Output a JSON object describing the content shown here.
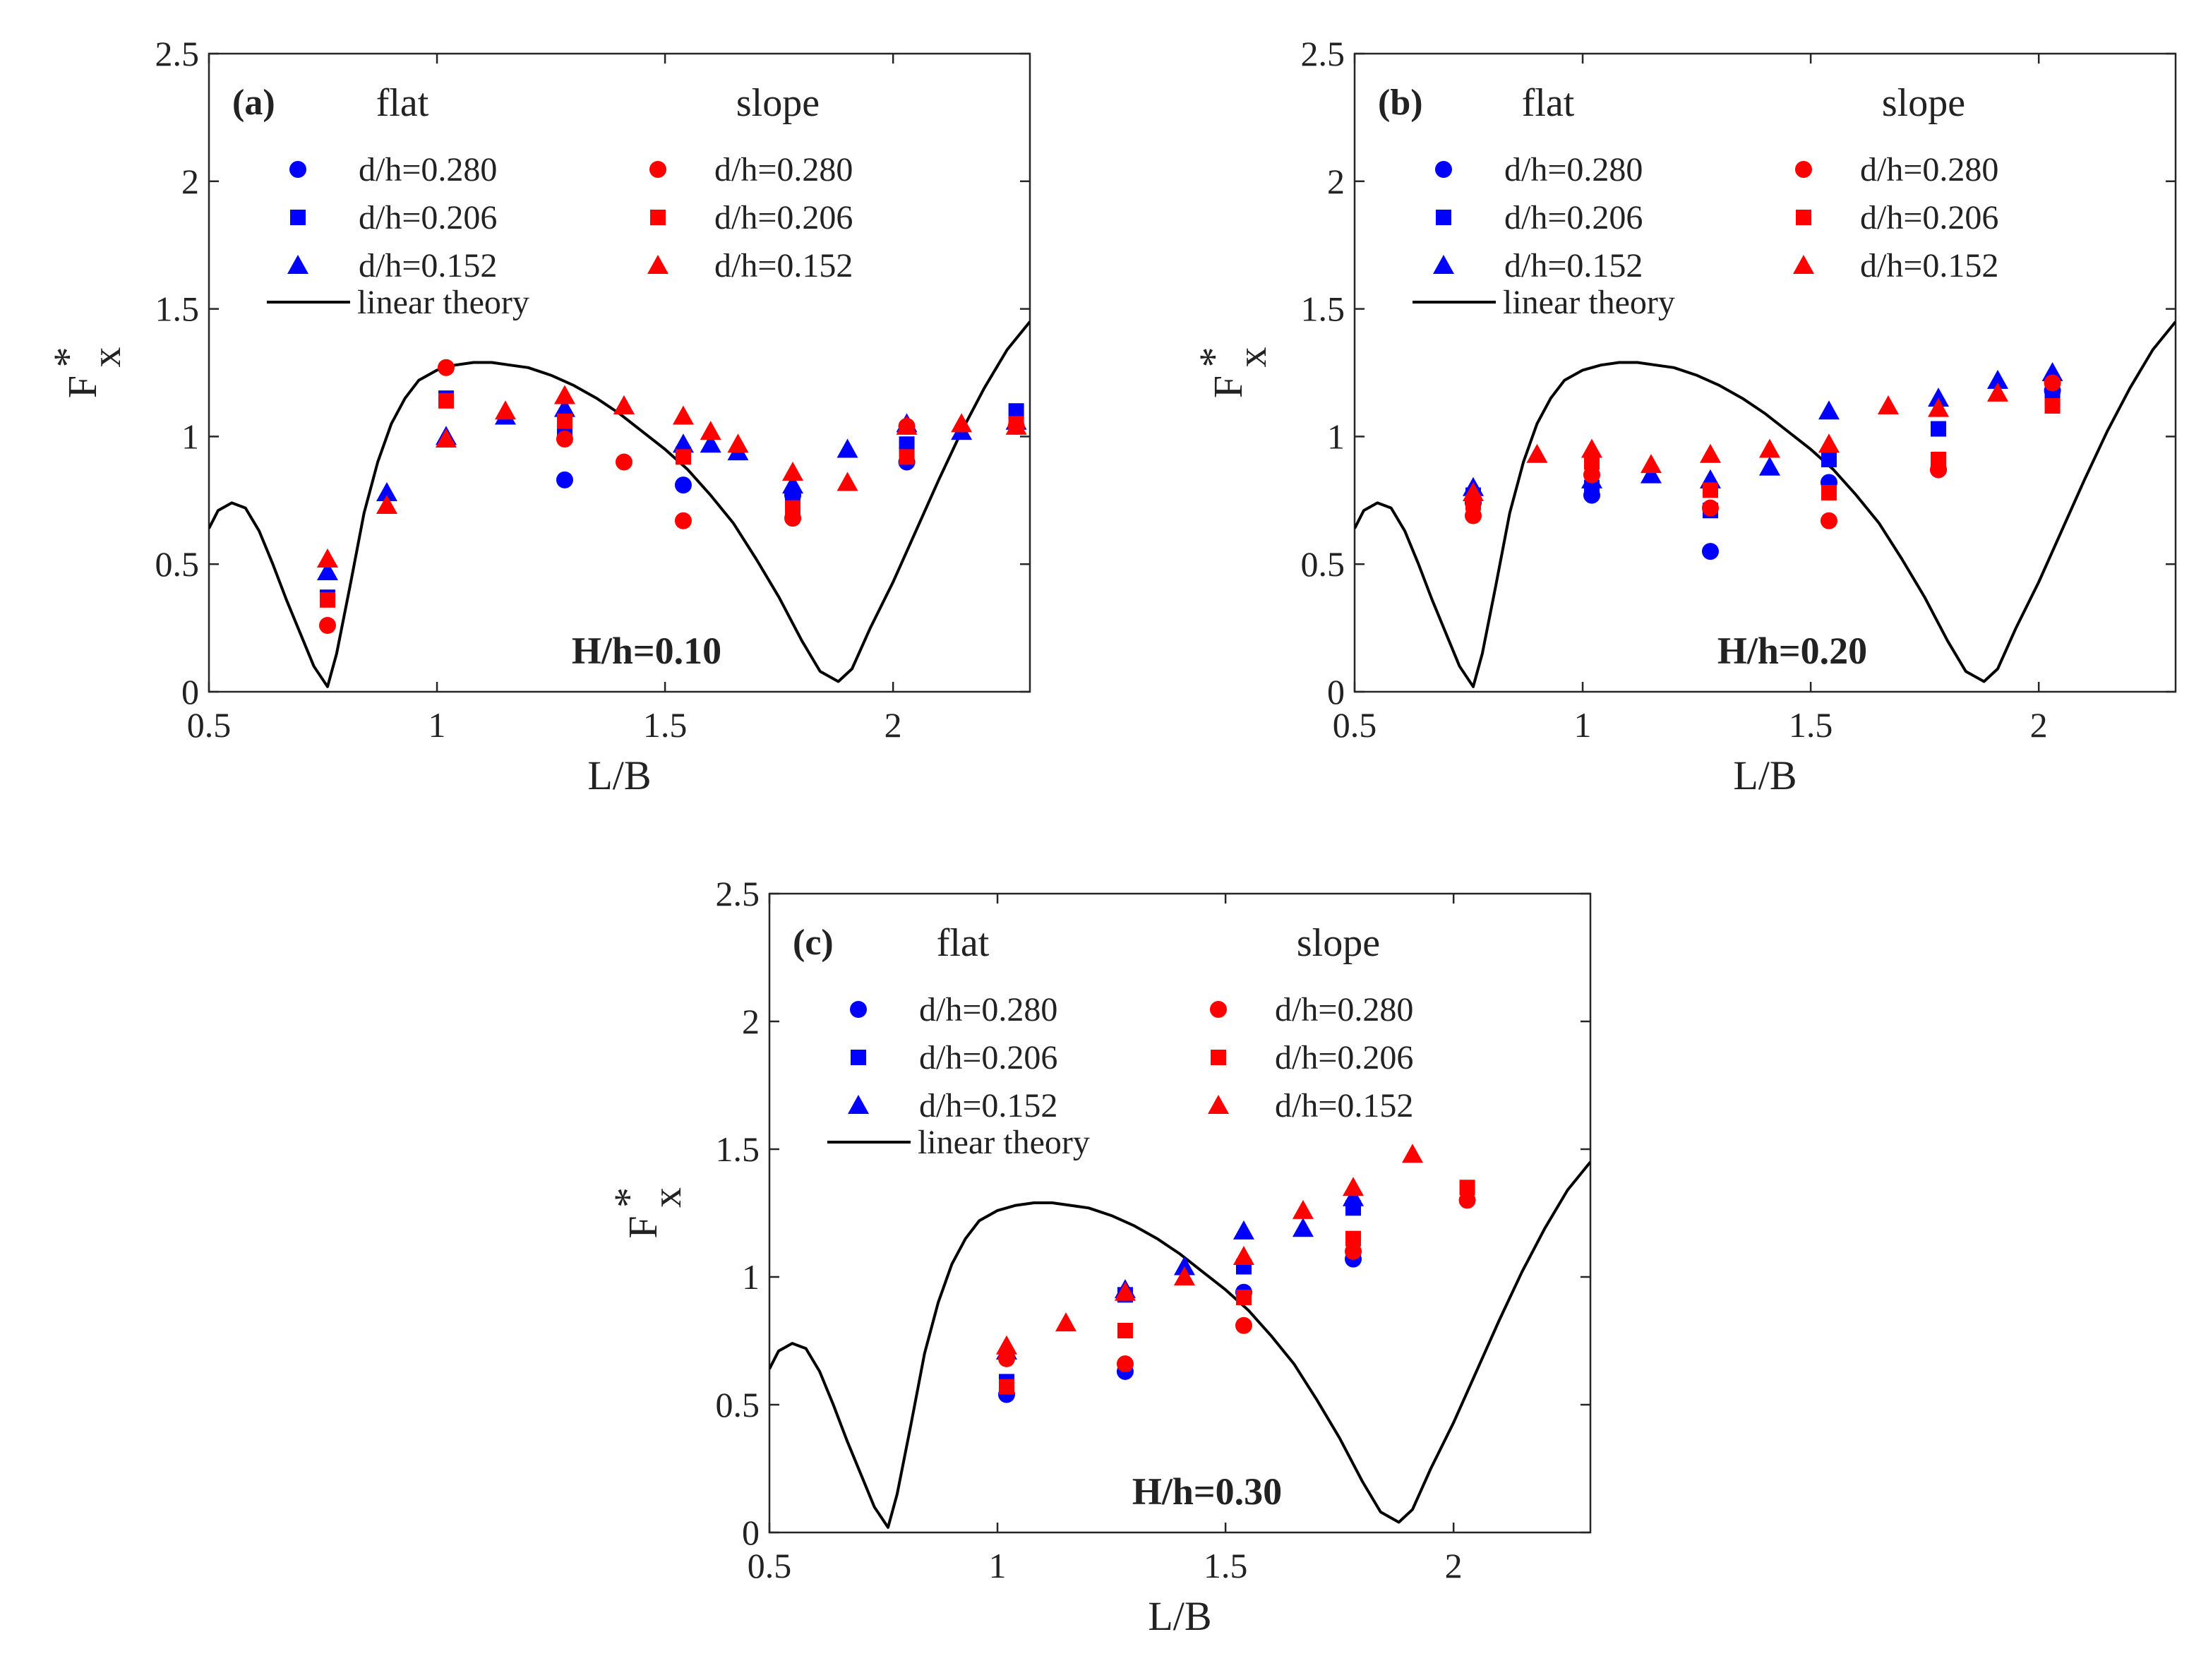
{
  "chart_data": [
    {
      "type": "scatter",
      "panel": "(a)",
      "annotation": "H/h=0.10",
      "xlabel": "L/B",
      "ylabel": "F",
      "ylabel_sup": "*",
      "ylabel_sub": "x",
      "xlim": [
        0.5,
        2.3
      ],
      "ylim": [
        0,
        2.5
      ],
      "xticks": [
        "0.5",
        "1",
        "1.5",
        "2"
      ],
      "yticks": [
        "0",
        "0.5",
        "1",
        "1.5",
        "2",
        "2.5"
      ],
      "legend_headers": [
        "flat",
        "slope"
      ],
      "line_label": "linear theory",
      "series": [
        {
          "name": "d/h=0.280",
          "group": "flat",
          "marker": "circle",
          "color": "#0000ff",
          "x": [
            1.28,
            1.54,
            1.78,
            2.03
          ],
          "y": [
            0.83,
            0.81,
            0.77,
            0.9
          ]
        },
        {
          "name": "d/h=0.206",
          "group": "flat",
          "marker": "square",
          "color": "#0000ff",
          "x": [
            0.76,
            1.02,
            1.28,
            1.54,
            1.78,
            2.03,
            2.27
          ],
          "y": [
            0.37,
            1.15,
            1.02,
            0.93,
            0.76,
            0.97,
            1.1
          ]
        },
        {
          "name": "d/h=0.152",
          "group": "flat",
          "marker": "triangle",
          "color": "#0000ff",
          "x": [
            0.76,
            0.89,
            1.02,
            1.15,
            1.28,
            1.41,
            1.54,
            1.6,
            1.66,
            1.78,
            1.9,
            2.03,
            2.15,
            2.27
          ],
          "y": [
            0.47,
            0.78,
            1.0,
            1.08,
            1.11,
            1.12,
            0.97,
            0.97,
            0.94,
            0.81,
            0.95,
            1.05,
            1.02,
            1.06
          ]
        },
        {
          "name": "d/h=0.280",
          "group": "slope",
          "marker": "circle",
          "color": "#ff0000",
          "x": [
            0.76,
            1.02,
            1.28,
            1.41,
            1.54,
            1.78,
            2.03,
            2.27
          ],
          "y": [
            0.26,
            1.27,
            0.99,
            0.9,
            0.67,
            0.68,
            1.04,
            1.04
          ]
        },
        {
          "name": "d/h=0.206",
          "group": "slope",
          "marker": "square",
          "color": "#ff0000",
          "x": [
            0.76,
            1.02,
            1.28,
            1.54,
            1.78,
            2.03,
            2.27
          ],
          "y": [
            0.36,
            1.14,
            1.06,
            0.92,
            0.72,
            0.92,
            1.05
          ]
        },
        {
          "name": "d/h=0.152",
          "group": "slope",
          "marker": "triangle",
          "color": "#ff0000",
          "x": [
            0.76,
            0.89,
            1.02,
            1.15,
            1.28,
            1.41,
            1.54,
            1.6,
            1.66,
            1.78,
            1.9,
            2.03,
            2.15,
            2.27
          ],
          "y": [
            0.52,
            0.73,
            0.99,
            1.1,
            1.16,
            1.12,
            1.08,
            1.02,
            0.97,
            0.86,
            0.82,
            1.04,
            1.05,
            1.04
          ]
        }
      ]
    },
    {
      "type": "scatter",
      "panel": "(b)",
      "annotation": "H/h=0.20",
      "xlabel": "L/B",
      "ylabel": "F",
      "ylabel_sup": "*",
      "ylabel_sub": "x",
      "xlim": [
        0.5,
        2.3
      ],
      "ylim": [
        0,
        2.5
      ],
      "xticks": [
        "0.5",
        "1",
        "1.5",
        "2"
      ],
      "yticks": [
        "0",
        "0.5",
        "1",
        "1.5",
        "2",
        "2.5"
      ],
      "legend_headers": [
        "flat",
        "slope"
      ],
      "line_label": "linear theory",
      "series": [
        {
          "name": "d/h=0.280",
          "group": "flat",
          "marker": "circle",
          "color": "#0000ff",
          "x": [
            0.76,
            1.02,
            1.28,
            1.54,
            1.78,
            2.03
          ],
          "y": [
            0.74,
            0.77,
            0.55,
            0.82,
            0.87,
            1.18
          ]
        },
        {
          "name": "d/h=0.206",
          "group": "flat",
          "marker": "square",
          "color": "#0000ff",
          "x": [
            0.76,
            1.02,
            1.28,
            1.54,
            1.78,
            2.03
          ],
          "y": [
            0.77,
            0.8,
            0.71,
            0.91,
            1.03,
            1.15
          ]
        },
        {
          "name": "d/h=0.152",
          "group": "flat",
          "marker": "triangle",
          "color": "#0000ff",
          "x": [
            0.76,
            1.02,
            1.15,
            1.28,
            1.41,
            1.54,
            1.78,
            1.91,
            2.03
          ],
          "y": [
            0.8,
            0.83,
            0.85,
            0.83,
            0.88,
            1.1,
            1.15,
            1.22,
            1.25
          ]
        },
        {
          "name": "d/h=0.280",
          "group": "slope",
          "marker": "circle",
          "color": "#ff0000",
          "x": [
            0.76,
            1.02,
            1.28,
            1.54,
            1.78,
            2.03
          ],
          "y": [
            0.69,
            0.85,
            0.72,
            0.67,
            0.87,
            1.21
          ]
        },
        {
          "name": "d/h=0.206",
          "group": "slope",
          "marker": "square",
          "color": "#ff0000",
          "x": [
            0.76,
            1.02,
            1.28,
            1.54,
            1.78,
            2.03
          ],
          "y": [
            0.74,
            0.9,
            0.79,
            0.78,
            0.91,
            1.12
          ]
        },
        {
          "name": "d/h=0.152",
          "group": "slope",
          "marker": "triangle",
          "color": "#ff0000",
          "x": [
            0.76,
            0.9,
            1.02,
            1.15,
            1.28,
            1.41,
            1.54,
            1.67,
            1.78,
            1.91
          ],
          "y": [
            0.78,
            0.93,
            0.95,
            0.89,
            0.93,
            0.95,
            0.97,
            1.12,
            1.11,
            1.17
          ]
        }
      ]
    },
    {
      "type": "scatter",
      "panel": "(c)",
      "annotation": "H/h=0.30",
      "xlabel": "L/B",
      "ylabel": "F",
      "ylabel_sup": "*",
      "ylabel_sub": "x",
      "xlim": [
        0.5,
        2.3
      ],
      "ylim": [
        0,
        2.5
      ],
      "xticks": [
        "0.5",
        "1",
        "1.5",
        "2"
      ],
      "yticks": [
        "0",
        "0.5",
        "1",
        "1.5",
        "2",
        "2.5"
      ],
      "legend_headers": [
        "flat",
        "slope"
      ],
      "line_label": "linear theory",
      "series": [
        {
          "name": "d/h=0.280",
          "group": "flat",
          "marker": "circle",
          "color": "#0000ff",
          "x": [
            1.02,
            1.28,
            1.54,
            1.78
          ],
          "y": [
            0.54,
            0.63,
            0.94,
            1.07
          ]
        },
        {
          "name": "d/h=0.206",
          "group": "flat",
          "marker": "square",
          "color": "#0000ff",
          "x": [
            1.02,
            1.28,
            1.54,
            1.78
          ],
          "y": [
            0.59,
            0.93,
            1.04,
            1.27
          ]
        },
        {
          "name": "d/h=0.152",
          "group": "flat",
          "marker": "triangle",
          "color": "#0000ff",
          "x": [
            1.02,
            1.28,
            1.41,
            1.54,
            1.67,
            1.78
          ],
          "y": [
            0.71,
            0.95,
            1.04,
            1.18,
            1.19,
            1.31
          ]
        },
        {
          "name": "d/h=0.280",
          "group": "slope",
          "marker": "circle",
          "color": "#ff0000",
          "x": [
            1.02,
            1.28,
            1.54,
            1.78,
            2.03
          ],
          "y": [
            0.68,
            0.66,
            0.81,
            1.1,
            1.3
          ]
        },
        {
          "name": "d/h=0.206",
          "group": "slope",
          "marker": "square",
          "color": "#ff0000",
          "x": [
            1.02,
            1.28,
            1.54,
            1.78,
            2.03
          ],
          "y": [
            0.57,
            0.79,
            0.92,
            1.15,
            1.35
          ]
        },
        {
          "name": "d/h=0.152",
          "group": "slope",
          "marker": "triangle",
          "color": "#ff0000",
          "x": [
            1.02,
            1.15,
            1.28,
            1.41,
            1.54,
            1.67,
            1.78,
            1.91
          ],
          "y": [
            0.73,
            0.82,
            0.94,
            1.0,
            1.08,
            1.26,
            1.35,
            1.48
          ]
        }
      ]
    }
  ],
  "linear_theory": {
    "name": "linear theory",
    "color": "#000000",
    "x": [
      0.5,
      0.52,
      0.55,
      0.58,
      0.61,
      0.64,
      0.67,
      0.7,
      0.73,
      0.76,
      0.78,
      0.81,
      0.84,
      0.87,
      0.9,
      0.93,
      0.96,
      1.0,
      1.04,
      1.08,
      1.12,
      1.16,
      1.2,
      1.25,
      1.3,
      1.35,
      1.4,
      1.45,
      1.5,
      1.55,
      1.6,
      1.65,
      1.7,
      1.75,
      1.8,
      1.84,
      1.88,
      1.91,
      1.95,
      2.0,
      2.05,
      2.1,
      2.15,
      2.2,
      2.25,
      2.3
    ],
    "y": [
      0.64,
      0.71,
      0.74,
      0.72,
      0.63,
      0.5,
      0.36,
      0.23,
      0.1,
      0.02,
      0.15,
      0.42,
      0.7,
      0.9,
      1.05,
      1.15,
      1.22,
      1.26,
      1.28,
      1.29,
      1.29,
      1.28,
      1.27,
      1.24,
      1.2,
      1.15,
      1.09,
      1.02,
      0.95,
      0.87,
      0.77,
      0.66,
      0.52,
      0.37,
      0.2,
      0.08,
      0.04,
      0.09,
      0.25,
      0.43,
      0.63,
      0.83,
      1.02,
      1.19,
      1.34,
      1.45
    ]
  }
}
